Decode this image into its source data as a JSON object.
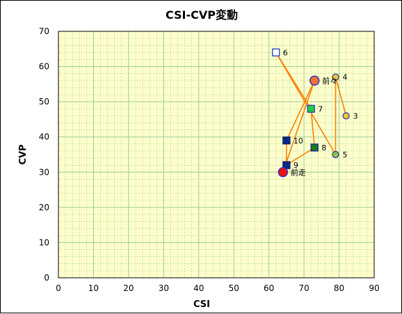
{
  "chart_data": {
    "type": "scatter",
    "title": "CSI-CVP変動",
    "xlabel": "CSI",
    "ylabel": "CVP",
    "xlim": [
      0,
      90
    ],
    "ylim": [
      0,
      70
    ],
    "x_ticks": [
      "0",
      "10",
      "20",
      "30",
      "40",
      "50",
      "60",
      "70",
      "80",
      "90"
    ],
    "y_ticks": [
      "0",
      "10",
      "20",
      "30",
      "40",
      "50",
      "60",
      "70"
    ],
    "grid": true,
    "points": [
      {
        "label": "3",
        "x": 82,
        "y": 46,
        "marker": "circle",
        "fill": "#f4c430",
        "stroke": "#2233aa"
      },
      {
        "label": "4",
        "x": 79,
        "y": 57,
        "marker": "circle",
        "fill": "#f4c430",
        "stroke": "#2233aa"
      },
      {
        "label": "5",
        "x": 79,
        "y": 35,
        "marker": "circle",
        "fill": "#8cc63f",
        "stroke": "#2233aa"
      },
      {
        "label": "6",
        "x": 62,
        "y": 64,
        "marker": "square",
        "fill": "#ffffff",
        "stroke": "#1f3fbf"
      },
      {
        "label": "7",
        "x": 72,
        "y": 48,
        "marker": "square",
        "fill": "#22cc44",
        "stroke": "#1f3fbf"
      },
      {
        "label": "8",
        "x": 73,
        "y": 37,
        "marker": "square",
        "fill": "#1a7a1a",
        "stroke": "#0a2a8a"
      },
      {
        "label": "9",
        "x": 65,
        "y": 32,
        "marker": "square",
        "fill": "#0a2a8a",
        "stroke": "#0a1a5a"
      },
      {
        "label": "10",
        "x": 65,
        "y": 39,
        "marker": "square",
        "fill": "#0a2a8a",
        "stroke": "#0a1a5a"
      },
      {
        "label": "前々",
        "x": 73,
        "y": 56,
        "marker": "circle-large",
        "fill": "#f07030",
        "stroke": "#3333cc"
      },
      {
        "label": "前走",
        "x": 64,
        "y": 30,
        "marker": "circle-large",
        "fill": "#ee1111",
        "stroke": "#3333cc"
      }
    ],
    "path_order": [
      "3",
      "4",
      "5",
      "6",
      "7",
      "8",
      "9",
      "10",
      "前々",
      "前走"
    ],
    "line_color": "#ff7f00",
    "plot_background": "#ffffcc",
    "grid_color": "#99cc99"
  }
}
